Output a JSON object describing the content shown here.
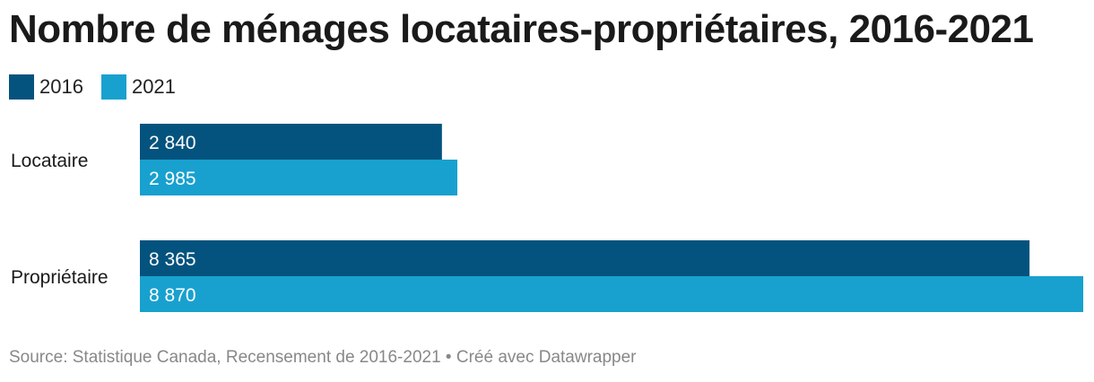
{
  "title": "Nombre de ménages locataires-propriétaires, 2016-2021",
  "source": "Source: Statistique Canada, Recensement de 2016-2021 • Créé avec Datawrapper",
  "colors": {
    "series_2016": "#04537e",
    "series_2021": "#18a1cf"
  },
  "chart_data": {
    "type": "bar",
    "orientation": "horizontal",
    "categories": [
      "Locataire",
      "Propriétaire"
    ],
    "series": [
      {
        "name": "2016",
        "values": [
          2840,
          8365
        ],
        "labels": [
          "2 840",
          "8 365"
        ]
      },
      {
        "name": "2021",
        "values": [
          2985,
          8870
        ],
        "labels": [
          "2 985",
          "8 870"
        ]
      }
    ],
    "xlim": [
      0,
      8870
    ],
    "legend": "top-left",
    "grid": false
  }
}
